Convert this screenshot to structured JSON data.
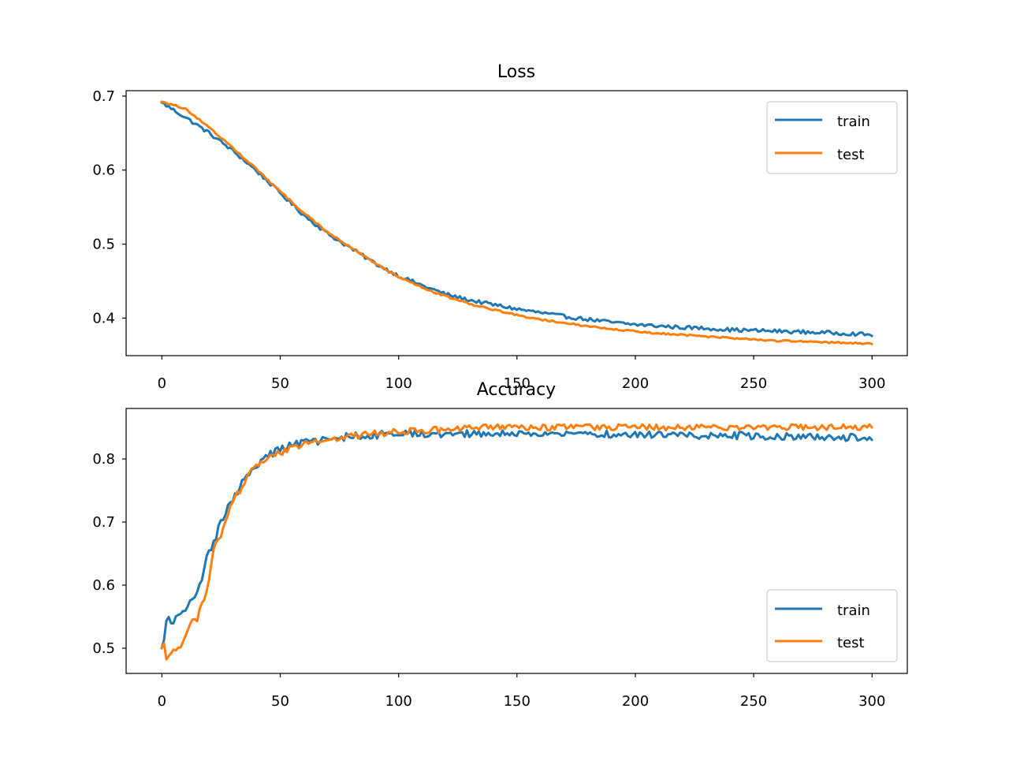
{
  "chart_data": [
    {
      "type": "line",
      "title": "Loss",
      "xlabel": "",
      "ylabel": "",
      "xlim": [
        -15,
        315
      ],
      "ylim": [
        0.35,
        0.708
      ],
      "xticks": [
        0,
        50,
        100,
        150,
        200,
        250,
        300
      ],
      "yticks": [
        0.4,
        0.5,
        0.6,
        0.7
      ],
      "xtick_labels": [
        "0",
        "50",
        "100",
        "150",
        "200",
        "250",
        "300"
      ],
      "ytick_labels": [
        "0.4",
        "0.5",
        "0.6",
        "0.7"
      ],
      "grid": false,
      "legend_position": "upper right",
      "series": [
        {
          "name": "train",
          "color": "#1f77b4",
          "x": [
            0,
            10,
            20,
            30,
            40,
            50,
            60,
            70,
            80,
            90,
            100,
            110,
            120,
            130,
            140,
            150,
            160,
            170,
            180,
            190,
            200,
            210,
            220,
            230,
            240,
            250,
            260,
            270,
            280,
            290,
            300
          ],
          "values": [
            0.692,
            0.672,
            0.651,
            0.627,
            0.6,
            0.57,
            0.54,
            0.515,
            0.495,
            0.475,
            0.458,
            0.445,
            0.433,
            0.425,
            0.419,
            0.413,
            0.408,
            0.403,
            0.399,
            0.395,
            0.392,
            0.39,
            0.388,
            0.387,
            0.385,
            0.384,
            0.383,
            0.382,
            0.381,
            0.38,
            0.378
          ],
          "noise": 0.0025
        },
        {
          "name": "test",
          "color": "#ff7f0e",
          "x": [
            0,
            10,
            20,
            30,
            40,
            50,
            60,
            70,
            80,
            90,
            100,
            110,
            120,
            130,
            140,
            150,
            160,
            170,
            180,
            190,
            200,
            210,
            220,
            230,
            240,
            250,
            260,
            270,
            280,
            290,
            300
          ],
          "values": [
            0.693,
            0.684,
            0.658,
            0.631,
            0.602,
            0.572,
            0.543,
            0.517,
            0.496,
            0.475,
            0.457,
            0.442,
            0.43,
            0.42,
            0.412,
            0.405,
            0.399,
            0.394,
            0.39,
            0.386,
            0.383,
            0.38,
            0.378,
            0.376,
            0.374,
            0.372,
            0.37,
            0.369,
            0.368,
            0.367,
            0.366
          ],
          "noise": 0.0012
        }
      ]
    },
    {
      "type": "line",
      "title": "Accuracy",
      "xlabel": "",
      "ylabel": "",
      "xlim": [
        -15,
        315
      ],
      "ylim": [
        0.46,
        0.88
      ],
      "xticks": [
        0,
        50,
        100,
        150,
        200,
        250,
        300
      ],
      "yticks": [
        0.5,
        0.6,
        0.7,
        0.8
      ],
      "xtick_labels": [
        "0",
        "50",
        "100",
        "150",
        "200",
        "250",
        "300"
      ],
      "ytick_labels": [
        "0.5",
        "0.6",
        "0.7",
        "0.8"
      ],
      "grid": false,
      "legend_position": "lower right",
      "series": [
        {
          "name": "train",
          "color": "#1f77b4",
          "x": [
            0,
            1,
            2,
            5,
            8,
            10,
            12,
            15,
            18,
            20,
            22,
            25,
            28,
            30,
            33,
            36,
            40,
            45,
            50,
            55,
            60,
            70,
            80,
            90,
            100,
            120,
            140,
            160,
            180,
            200,
            220,
            240,
            260,
            280,
            300
          ],
          "values": [
            0.5,
            0.51,
            0.545,
            0.544,
            0.552,
            0.562,
            0.57,
            0.585,
            0.625,
            0.655,
            0.665,
            0.7,
            0.725,
            0.735,
            0.755,
            0.775,
            0.79,
            0.805,
            0.815,
            0.822,
            0.826,
            0.83,
            0.836,
            0.838,
            0.84,
            0.84,
            0.84,
            0.84,
            0.84,
            0.838,
            0.838,
            0.837,
            0.836,
            0.836,
            0.832
          ],
          "noise": 0.006
        },
        {
          "name": "test",
          "color": "#ff7f0e",
          "x": [
            0,
            1,
            2,
            3,
            5,
            8,
            10,
            12,
            15,
            18,
            20,
            22,
            25,
            28,
            30,
            33,
            36,
            40,
            45,
            50,
            55,
            60,
            70,
            80,
            90,
            100,
            120,
            140,
            160,
            180,
            200,
            220,
            240,
            260,
            280,
            300
          ],
          "values": [
            0.5,
            0.505,
            0.48,
            0.49,
            0.495,
            0.5,
            0.52,
            0.54,
            0.545,
            0.58,
            0.61,
            0.655,
            0.68,
            0.715,
            0.735,
            0.75,
            0.77,
            0.79,
            0.8,
            0.81,
            0.818,
            0.824,
            0.83,
            0.836,
            0.84,
            0.843,
            0.847,
            0.85,
            0.85,
            0.85,
            0.85,
            0.85,
            0.85,
            0.85,
            0.85,
            0.85
          ],
          "noise": 0.005
        }
      ]
    }
  ]
}
